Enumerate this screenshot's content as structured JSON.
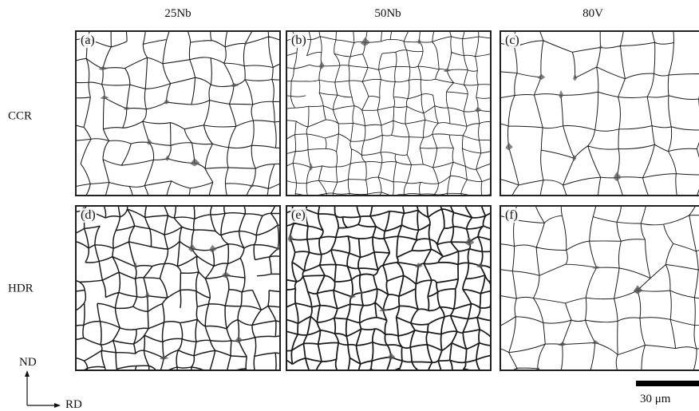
{
  "columns": [
    "25Nb",
    "50Nb",
    "80V"
  ],
  "rows": [
    "CCR",
    "HDR"
  ],
  "panels": [
    {
      "label": "(a)",
      "row": "CCR",
      "column": "25Nb"
    },
    {
      "label": "(b)",
      "row": "CCR",
      "column": "50Nb"
    },
    {
      "label": "(c)",
      "row": "CCR",
      "column": "80V"
    },
    {
      "label": "(d)",
      "row": "HDR",
      "column": "25Nb"
    },
    {
      "label": "(e)",
      "row": "HDR",
      "column": "50Nb"
    },
    {
      "label": "(f)",
      "row": "HDR",
      "column": "80V"
    }
  ],
  "axes": {
    "vertical": "ND",
    "horizontal": "RD"
  },
  "scale_bar": {
    "label": "30 μm"
  },
  "colors": {
    "grain_boundary": "#1a1a1a",
    "background": "#ffffff",
    "second_phase": "#555555"
  }
}
